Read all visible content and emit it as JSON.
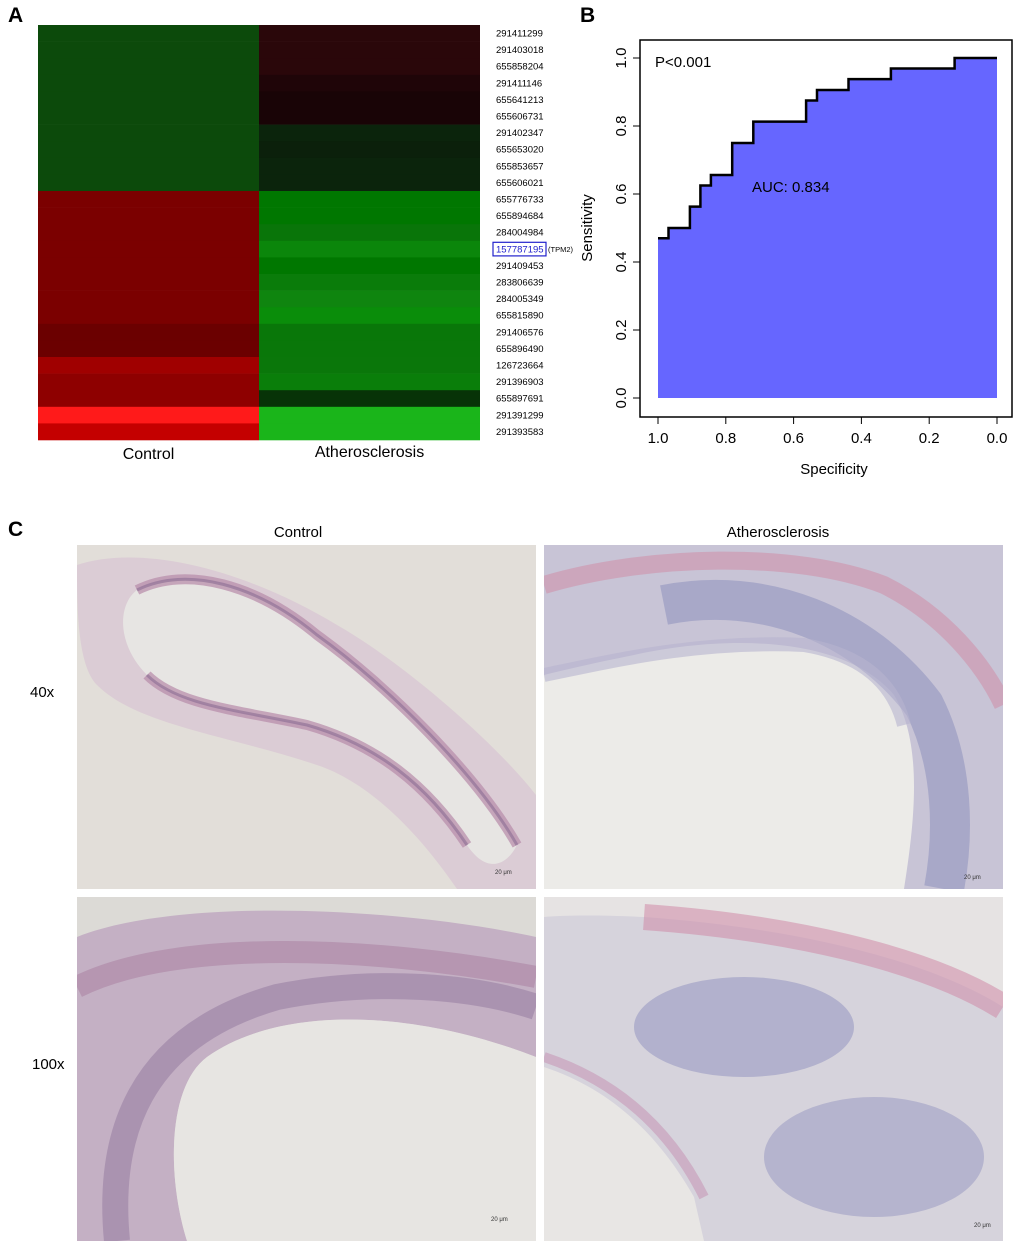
{
  "panels": {
    "a": "A",
    "b": "B",
    "c": "C"
  },
  "heatmap": {
    "columns": [
      "Control",
      "Atherosclerosis"
    ],
    "rows": [
      {
        "id": "291411299",
        "c": "#0c4a0b",
        "a": "#2a070a"
      },
      {
        "id": "291403018",
        "c": "#0c4a0b",
        "a": "#2a070a"
      },
      {
        "id": "655858204",
        "c": "#0c4a0b",
        "a": "#2a070a"
      },
      {
        "id": "291411146",
        "c": "#0c4a0b",
        "a": "#1f0508"
      },
      {
        "id": "655641213",
        "c": "#0c4a0b",
        "a": "#190406"
      },
      {
        "id": "655606731",
        "c": "#0c4a0b",
        "a": "#190406"
      },
      {
        "id": "291402347",
        "c": "#0c4a0b",
        "a": "#0b240c"
      },
      {
        "id": "655653020",
        "c": "#0c4a0b",
        "a": "#0b200b"
      },
      {
        "id": "655853657",
        "c": "#0c4a0b",
        "a": "#0b240c"
      },
      {
        "id": "655606021",
        "c": "#0c4a0b",
        "a": "#0b240c"
      },
      {
        "id": "655776733",
        "c": "#7b0000",
        "a": "#007700"
      },
      {
        "id": "655894684",
        "c": "#7b0000",
        "a": "#007700"
      },
      {
        "id": "284004984",
        "c": "#7b0000",
        "a": "#097509"
      },
      {
        "id": "157787195",
        "c": "#7b0000",
        "a": "#0b860b",
        "highlight": true,
        "gene": "(TPM2)"
      },
      {
        "id": "291409453",
        "c": "#7b0000",
        "a": "#007700"
      },
      {
        "id": "283806639",
        "c": "#7b0000",
        "a": "#0a7c0a"
      },
      {
        "id": "284005349",
        "c": "#7b0000",
        "a": "#0f850f"
      },
      {
        "id": "655815890",
        "c": "#7b0000",
        "a": "#0a8d0a"
      },
      {
        "id": "291406576",
        "c": "#6b0000",
        "a": "#097709"
      },
      {
        "id": "655896490",
        "c": "#6b0000",
        "a": "#097709"
      },
      {
        "id": "126723664",
        "c": "#a00000",
        "a": "#0a770a"
      },
      {
        "id": "291396903",
        "c": "#8e0000",
        "a": "#0a7e0a"
      },
      {
        "id": "655897691",
        "c": "#8e0000",
        "a": "#073307"
      },
      {
        "id": "291391299",
        "c": "#ff1a1a",
        "a": "#1ab51a"
      },
      {
        "id": "291393583",
        "c": "#c40000",
        "a": "#1ab51a"
      }
    ]
  },
  "chart_data": {
    "type": "area",
    "title": "",
    "xlabel": "Specificity",
    "ylabel": "Sensitivity",
    "xlim": [
      1.0,
      0.0
    ],
    "ylim": [
      0.0,
      1.0
    ],
    "x_reversed": true,
    "xticks": [
      "1.0",
      "0.8",
      "0.6",
      "0.4",
      "0.2",
      "0.0"
    ],
    "yticks": [
      "0.0",
      "0.2",
      "0.4",
      "0.6",
      "0.8",
      "1.0"
    ],
    "fill_color": "#6666ff",
    "annotations": [
      "P<0.001",
      "AUC: 0.834"
    ],
    "points": [
      [
        1.0,
        0.0
      ],
      [
        1.0,
        0.47
      ],
      [
        0.969,
        0.47
      ],
      [
        0.969,
        0.5
      ],
      [
        0.906,
        0.5
      ],
      [
        0.906,
        0.563
      ],
      [
        0.875,
        0.563
      ],
      [
        0.875,
        0.625
      ],
      [
        0.844,
        0.625
      ],
      [
        0.844,
        0.656
      ],
      [
        0.781,
        0.656
      ],
      [
        0.781,
        0.75
      ],
      [
        0.719,
        0.75
      ],
      [
        0.719,
        0.813
      ],
      [
        0.563,
        0.813
      ],
      [
        0.563,
        0.875
      ],
      [
        0.531,
        0.875
      ],
      [
        0.531,
        0.906
      ],
      [
        0.438,
        0.906
      ],
      [
        0.438,
        0.938
      ],
      [
        0.313,
        0.938
      ],
      [
        0.313,
        0.969
      ],
      [
        0.125,
        0.969
      ],
      [
        0.125,
        1.0
      ],
      [
        0.0,
        1.0
      ],
      [
        0.0,
        0.0
      ]
    ]
  },
  "histology": {
    "col_titles": [
      "Control",
      "Atherosclerosis"
    ],
    "row_labels": [
      "40x",
      "100x"
    ],
    "scale_label": "20 μm"
  }
}
